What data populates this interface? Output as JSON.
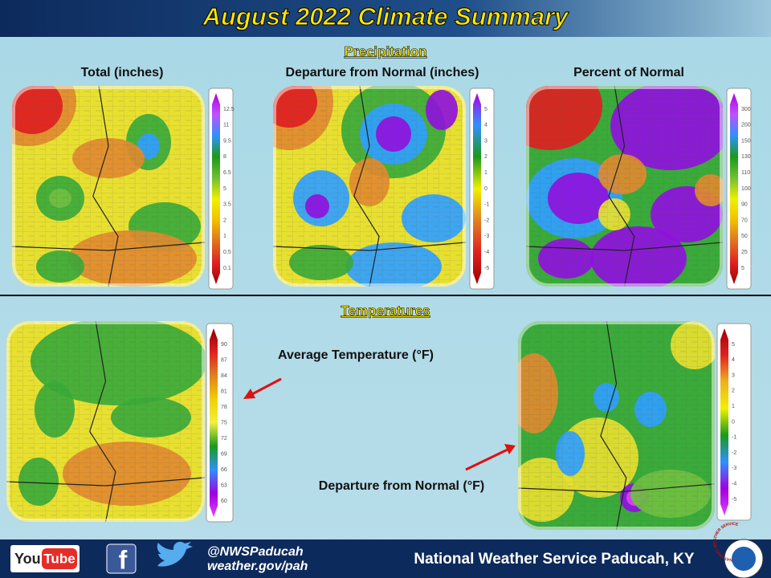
{
  "header": {
    "title": "August 2022 Climate Summary"
  },
  "precipitation": {
    "heading": "Precipitation",
    "maps": [
      {
        "title": "Total (inches)",
        "legend": [
          "12.5",
          "11",
          "9.5",
          "8",
          "6.5",
          "5",
          "3.5",
          "2",
          "1",
          "0.5",
          "0.1"
        ]
      },
      {
        "title": "Departure from Normal (inches)",
        "legend": [
          "5",
          "4",
          "3",
          "2",
          "1",
          "0",
          "-1",
          "-2",
          "-3",
          "-4",
          "-5"
        ]
      },
      {
        "title": "Percent of Normal",
        "legend": [
          "300",
          "200",
          "150",
          "130",
          "110",
          "100",
          "90",
          "70",
          "50",
          "25",
          "5"
        ]
      }
    ]
  },
  "temperatures": {
    "heading": "Temperatures",
    "maps": [
      {
        "annotation": "Average Temperature (°F)",
        "legend": [
          "90",
          "87",
          "84",
          "81",
          "78",
          "75",
          "72",
          "69",
          "66",
          "63",
          "60"
        ]
      },
      {
        "annotation": "Departure from Normal (°F)",
        "legend": [
          "5",
          "4",
          "3",
          "2",
          "1",
          "0",
          "-1",
          "-2",
          "-3",
          "-4",
          "-5"
        ]
      }
    ]
  },
  "footer": {
    "youtube_you": "You",
    "youtube_tube": "Tube",
    "facebook": "f",
    "handle": "@NWSPaducah",
    "website": "weather.gov/pah",
    "office": "National Weather Service Paducah, KY",
    "seal": "NATIONAL WEATHER SERVICE"
  }
}
